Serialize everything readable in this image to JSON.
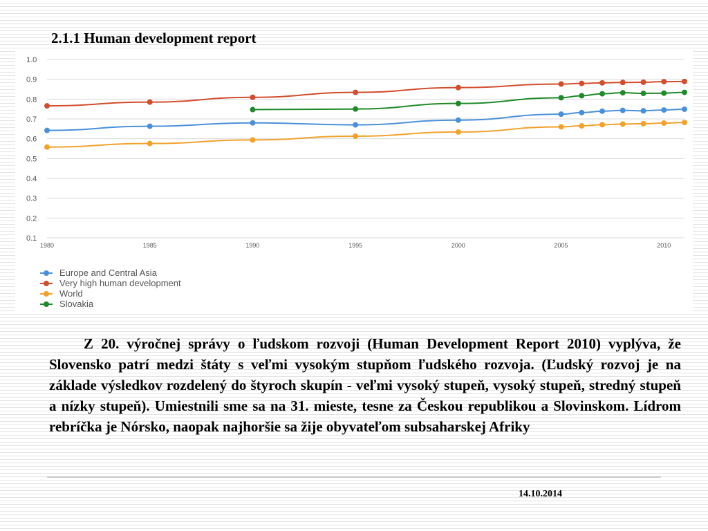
{
  "slide": {
    "title": "2.1.1 Human development report",
    "paragraph": "Z 20. výročnej správy o ľudskom rozvoji (Human Development Report 2010) vyplýva, že Slovensko patrí medzi štáty s veľmi vysokým stupňom ľudského rozvoja. (Ľudský rozvoj je na základe výsledkov rozdelený do štyroch skupín - veľmi vysoký stupeň, vysoký stupeň, stredný stupeň a nízky stupeň). Umiestnili sme sa na 31. mieste, tesne za Českou republikou a Slovinskom. Lídrom rebríčka je Nórsko, naopak najhoršie sa žije obyvateľom subsaharskej Afriky",
    "date": "14.10.2014"
  },
  "chart_data": {
    "type": "line",
    "title": "",
    "xlabel": "",
    "ylabel": "",
    "ylim": [
      0.1,
      1.0
    ],
    "xlim": [
      1980,
      2011
    ],
    "y_ticks": [
      "0.1",
      "0.2",
      "0.3",
      "0.4",
      "0.5",
      "0.6",
      "0.7",
      "0.8",
      "0.9",
      "1.0"
    ],
    "x_ticks": [
      "1980",
      "1985",
      "1990",
      "1995",
      "2000",
      "2005",
      "2010"
    ],
    "grid": true,
    "legend_position": "bottom-left",
    "series": [
      {
        "name": "Europe and Central Asia",
        "color": "#4a90d9",
        "x": [
          1980,
          1985,
          1990,
          1995,
          2000,
          2005,
          2006,
          2007,
          2008,
          2009,
          2010,
          2011
        ],
        "values": [
          0.642,
          0.663,
          0.68,
          0.67,
          0.694,
          0.724,
          0.732,
          0.739,
          0.743,
          0.741,
          0.745,
          0.749
        ]
      },
      {
        "name": "Very high human development",
        "color": "#d34c2c",
        "x": [
          1980,
          1985,
          1990,
          1995,
          2000,
          2005,
          2006,
          2007,
          2008,
          2009,
          2010,
          2011
        ],
        "values": [
          0.766,
          0.785,
          0.809,
          0.834,
          0.858,
          0.876,
          0.879,
          0.882,
          0.884,
          0.885,
          0.888,
          0.889
        ]
      },
      {
        "name": "World",
        "color": "#f2a22c",
        "x": [
          1980,
          1985,
          1990,
          1995,
          2000,
          2005,
          2006,
          2007,
          2008,
          2009,
          2010,
          2011
        ],
        "values": [
          0.558,
          0.576,
          0.594,
          0.613,
          0.634,
          0.66,
          0.665,
          0.671,
          0.674,
          0.676,
          0.679,
          0.682
        ]
      },
      {
        "name": "Slovakia",
        "color": "#1f8a2a",
        "x": [
          1990,
          1995,
          2000,
          2005,
          2006,
          2007,
          2008,
          2009,
          2010,
          2011
        ],
        "values": [
          0.747,
          0.75,
          0.778,
          0.807,
          0.817,
          0.827,
          0.832,
          0.829,
          0.83,
          0.834
        ]
      }
    ]
  }
}
